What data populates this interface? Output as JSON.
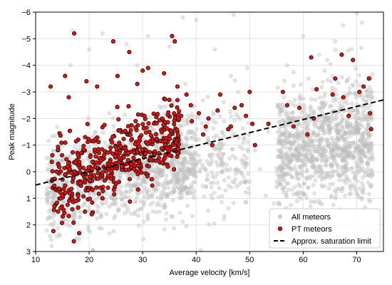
{
  "chart_data": {
    "type": "scatter",
    "title": "",
    "xlabel": "Average velocity [km/s]",
    "ylabel": "Peak magnitude",
    "xlim": [
      10,
      75
    ],
    "ylim": [
      3,
      -6
    ],
    "y_inverted": true,
    "xticks": [
      10,
      20,
      30,
      40,
      50,
      60,
      70
    ],
    "yticks": [
      -6,
      -5,
      -4,
      -3,
      -2,
      -1,
      0,
      1,
      2,
      3
    ],
    "grid": true,
    "legend_position": "bottom-right",
    "series": [
      {
        "name": "All meteors",
        "color": "#c8c8c8",
        "clusters": [
          {
            "x_range": [
              12,
              40
            ],
            "y_center": 0.1,
            "y_spread": 0.9,
            "count": 900
          },
          {
            "x_range": [
              30,
              50
            ],
            "y_center": -0.5,
            "y_spread": 1.0,
            "count": 350
          },
          {
            "x_range": [
              55,
              73
            ],
            "y_center": -1.0,
            "y_spread": 1.1,
            "count": 1100
          }
        ],
        "points": [
          [
            12.5,
            1.5
          ],
          [
            13.5,
            1.9
          ],
          [
            14.5,
            2.4
          ],
          [
            15.5,
            1.8
          ],
          [
            14,
            1.4
          ],
          [
            16,
            2.0
          ],
          [
            18.2,
            1.7
          ],
          [
            25.5,
            1.4
          ],
          [
            28.5,
            1.6
          ],
          [
            33,
            -2.1
          ],
          [
            38.5,
            -2.1
          ],
          [
            43,
            1.0
          ],
          [
            45.5,
            0.7
          ],
          [
            48.5,
            0.4
          ],
          [
            52,
            -0.1
          ],
          [
            51,
            -0.8
          ],
          [
            53.5,
            -1.5
          ],
          [
            56.5,
            1.9
          ],
          [
            54.5,
            1.2
          ],
          [
            56,
            -2.3
          ],
          [
            53,
            0.9
          ],
          [
            61,
            0.6
          ],
          [
            63.5,
            0.3
          ],
          [
            66,
            1.0
          ],
          [
            70,
            0.8
          ],
          [
            72.5,
            0.5
          ],
          [
            63,
            -4.4
          ],
          [
            60,
            -5.1
          ],
          [
            64.5,
            -4.2
          ],
          [
            66,
            -4.9
          ],
          [
            69,
            -4.6
          ],
          [
            67.5,
            -5.5
          ],
          [
            71,
            -5.6
          ],
          [
            70,
            -6.0
          ],
          [
            64,
            -3.8
          ],
          [
            57,
            -4.0
          ],
          [
            68.5,
            -3.5
          ],
          [
            61,
            -3.5
          ],
          [
            72,
            -3.0
          ],
          [
            47,
            -5.9
          ],
          [
            40,
            -5.7
          ],
          [
            31,
            -5.1
          ],
          [
            27,
            -4.8
          ],
          [
            22.5,
            -5.2
          ],
          [
            20,
            -4.6
          ],
          [
            17,
            -5.3
          ],
          [
            35,
            -4.7
          ],
          [
            29,
            -4.0
          ],
          [
            43.5,
            -4.6
          ],
          [
            49.5,
            -3.9
          ],
          [
            38,
            -3.3
          ],
          [
            46.5,
            -3.6
          ],
          [
            16.5,
            -4.0
          ],
          [
            37.5,
            -5.8
          ]
        ]
      },
      {
        "name": "PT meteors",
        "color": "#e3120b",
        "clusters": [
          {
            "x_range": [
              13,
              24
            ],
            "y_center": 0.1,
            "y_spread": 0.7,
            "count": 220
          },
          {
            "x_range": [
              24,
              37
            ],
            "y_center": -0.9,
            "y_spread": 0.7,
            "count": 280
          }
        ],
        "points": [
          [
            12.8,
            -3.2
          ],
          [
            15.5,
            -3.6
          ],
          [
            16.2,
            -2.8
          ],
          [
            17.2,
            -5.2
          ],
          [
            19.5,
            -3.4
          ],
          [
            21.5,
            -3.2
          ],
          [
            24.5,
            -4.9
          ],
          [
            25.3,
            -3.6
          ],
          [
            27.5,
            -4.5
          ],
          [
            29,
            -3.3
          ],
          [
            30,
            -3.8
          ],
          [
            31,
            -3.9
          ],
          [
            34,
            -3.7
          ],
          [
            36,
            -4.9
          ],
          [
            35.5,
            -5.1
          ],
          [
            36.5,
            -3.2
          ],
          [
            35,
            -2.7
          ],
          [
            37.2,
            -2.1
          ],
          [
            39,
            -2.5
          ],
          [
            38.2,
            -2.9
          ],
          [
            40.5,
            -2.2
          ],
          [
            41.3,
            -1.4
          ],
          [
            42.3,
            -2.0
          ],
          [
            43,
            -1.0
          ],
          [
            44.5,
            -2.9
          ],
          [
            46.5,
            -1.7
          ],
          [
            47.2,
            -2.4
          ],
          [
            48.5,
            -2.5
          ],
          [
            50,
            -3.0
          ],
          [
            49.3,
            -2.1
          ],
          [
            50.5,
            -1.8
          ],
          [
            51,
            -1.0
          ],
          [
            53.5,
            -1.8
          ],
          [
            56.2,
            -3.0
          ],
          [
            57,
            -2.5
          ],
          [
            58.2,
            -1.7
          ],
          [
            59.3,
            -2.4
          ],
          [
            61.5,
            -4.3
          ],
          [
            62.5,
            -3.1
          ],
          [
            62,
            -2.0
          ],
          [
            65.5,
            -2.9
          ],
          [
            66,
            -3.5
          ],
          [
            67.2,
            -4.4
          ],
          [
            67.5,
            -2.8
          ],
          [
            68.5,
            -2.1
          ],
          [
            69.3,
            -4.2
          ],
          [
            70.5,
            -3.0
          ],
          [
            72.3,
            -3.5
          ],
          [
            72.5,
            -2.2
          ],
          [
            72.7,
            -1.6
          ],
          [
            71.3,
            -3.2
          ],
          [
            60.8,
            -1.4
          ],
          [
            44,
            -2.3
          ],
          [
            46,
            -1.6
          ],
          [
            41.8,
            -1.7
          ],
          [
            39.2,
            -1.9
          ],
          [
            13.5,
            1.3
          ],
          [
            14.2,
            1.5
          ],
          [
            15,
            0.9
          ],
          [
            17.5,
            1.1
          ],
          [
            20.5,
            1.6
          ],
          [
            22.5,
            1.0
          ],
          [
            23.5,
            0.6
          ]
        ]
      },
      {
        "name": "Approx. saturation limit",
        "type": "line",
        "style": "dashed",
        "color": "#000000",
        "x": [
          10,
          75
        ],
        "y": [
          0.5,
          -2.7
        ]
      }
    ]
  }
}
